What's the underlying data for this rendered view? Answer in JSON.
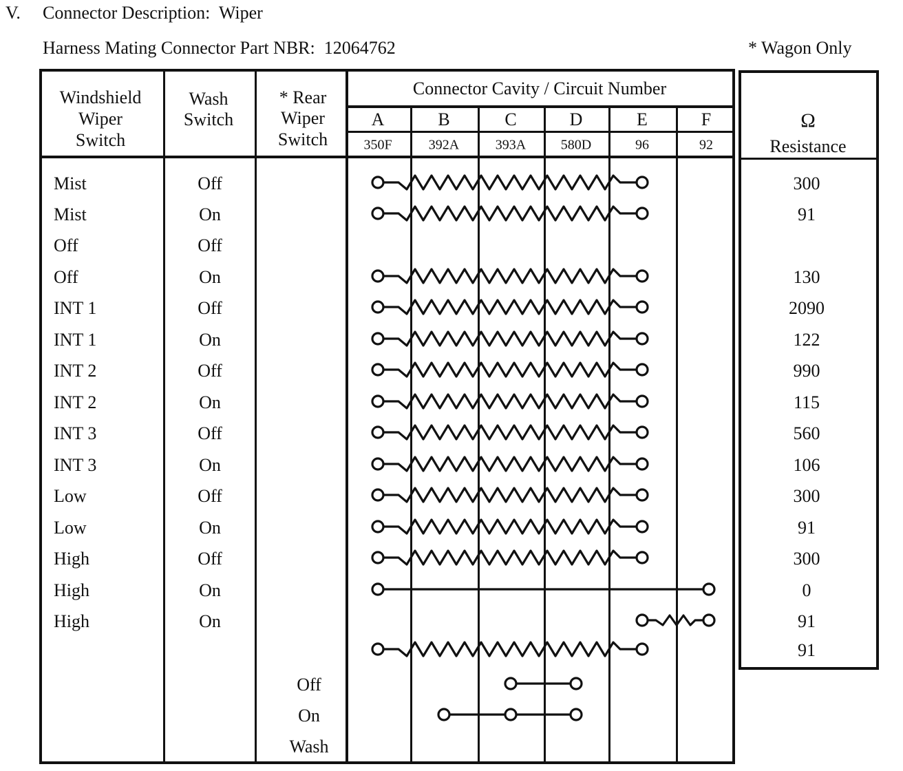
{
  "page": {
    "section_number": "V.",
    "section_title": "Connector Description:  Wiper",
    "subtitle": "Harness Mating Connector Part NBR:  12064762",
    "note": "* Wagon Only"
  },
  "table": {
    "headers": {
      "wiper": [
        "Windshield",
        "Wiper",
        "Switch"
      ],
      "wash": [
        "Wash",
        "Switch"
      ],
      "rear": [
        "* Rear",
        "Wiper",
        "Switch"
      ],
      "cavity_banner": "Connector Cavity / Circuit Number",
      "cavities": [
        "A",
        "B",
        "C",
        "D",
        "E",
        "F"
      ],
      "circuit_numbers": [
        "350F",
        "392A",
        "393A",
        "580D",
        "96",
        "92"
      ],
      "resistance_symbol": "Ω",
      "resistance_label": "Resistance"
    },
    "rows": [
      {
        "wiper": "Mist",
        "wash": "Off",
        "rear": "",
        "resistance": "300",
        "circuit": {
          "kind": "resistor",
          "terminals": [
            "A",
            "E"
          ]
        }
      },
      {
        "wiper": "Mist",
        "wash": "On",
        "rear": "",
        "resistance": "91",
        "circuit": {
          "kind": "resistor",
          "terminals": [
            "A",
            "E"
          ]
        }
      },
      {
        "wiper": "Off",
        "wash": "Off",
        "rear": "",
        "resistance": "",
        "circuit": {
          "kind": "none",
          "terminals": []
        }
      },
      {
        "wiper": "Off",
        "wash": "On",
        "rear": "",
        "resistance": "130",
        "circuit": {
          "kind": "resistor",
          "terminals": [
            "A",
            "E"
          ]
        }
      },
      {
        "wiper": "INT 1",
        "wash": "Off",
        "rear": "",
        "resistance": "2090",
        "circuit": {
          "kind": "resistor",
          "terminals": [
            "A",
            "E"
          ]
        }
      },
      {
        "wiper": "INT 1",
        "wash": "On",
        "rear": "",
        "resistance": "122",
        "circuit": {
          "kind": "resistor",
          "terminals": [
            "A",
            "E"
          ]
        }
      },
      {
        "wiper": "INT 2",
        "wash": "Off",
        "rear": "",
        "resistance": "990",
        "circuit": {
          "kind": "resistor",
          "terminals": [
            "A",
            "E"
          ]
        }
      },
      {
        "wiper": "INT 2",
        "wash": "On",
        "rear": "",
        "resistance": "115",
        "circuit": {
          "kind": "resistor",
          "terminals": [
            "A",
            "E"
          ]
        }
      },
      {
        "wiper": "INT 3",
        "wash": "Off",
        "rear": "",
        "resistance": "560",
        "circuit": {
          "kind": "resistor",
          "terminals": [
            "A",
            "E"
          ]
        }
      },
      {
        "wiper": "INT 3",
        "wash": "On",
        "rear": "",
        "resistance": "106",
        "circuit": {
          "kind": "resistor",
          "terminals": [
            "A",
            "E"
          ]
        }
      },
      {
        "wiper": "Low",
        "wash": "Off",
        "rear": "",
        "resistance": "300",
        "circuit": {
          "kind": "resistor",
          "terminals": [
            "A",
            "E"
          ]
        }
      },
      {
        "wiper": "Low",
        "wash": "On",
        "rear": "",
        "resistance": "91",
        "circuit": {
          "kind": "resistor",
          "terminals": [
            "A",
            "E"
          ]
        }
      },
      {
        "wiper": "High",
        "wash": "Off",
        "rear": "",
        "resistance": "300",
        "circuit": {
          "kind": "resistor",
          "terminals": [
            "A",
            "E"
          ]
        }
      },
      {
        "wiper": "High",
        "wash": "On",
        "rear": "",
        "resistance": "0",
        "circuit": {
          "kind": "wire",
          "terminals": [
            "A",
            "F"
          ]
        }
      },
      {
        "wiper": "High",
        "wash": "On",
        "rear": "",
        "resistance": "91",
        "circuit": {
          "kind": "resistor",
          "terminals": [
            "E",
            "F"
          ]
        }
      },
      {
        "wiper": "",
        "wash": "",
        "rear": "",
        "resistance": "91",
        "circuit": {
          "kind": "resistor",
          "terminals": [
            "A",
            "E"
          ]
        }
      },
      {
        "wiper": "",
        "wash": "",
        "rear": "Off",
        "resistance": "",
        "circuit": {
          "kind": "wire",
          "terminals": [
            "C",
            "D"
          ]
        }
      },
      {
        "wiper": "",
        "wash": "",
        "rear": "On",
        "resistance": "",
        "circuit": {
          "kind": "wire",
          "terminals": [
            "B",
            "C",
            "D"
          ]
        }
      },
      {
        "wiper": "",
        "wash": "",
        "rear": "Wash",
        "resistance": "",
        "circuit": {
          "kind": "none",
          "terminals": []
        }
      }
    ]
  }
}
